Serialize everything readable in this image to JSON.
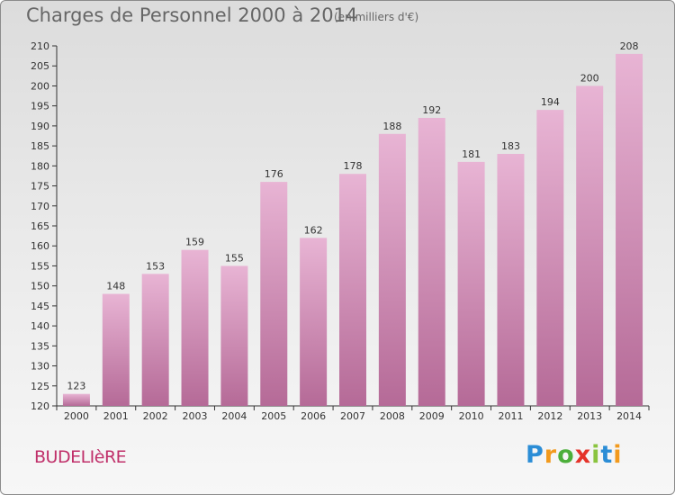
{
  "title": "Charges de Personnel 2000 à 2014",
  "subtitle": "(en milliers d'€)",
  "commune": "BUDELIèRE",
  "logo": {
    "letters": [
      "P",
      "r",
      "o",
      "x",
      "i",
      "t",
      "i"
    ],
    "colors": [
      "#2b8dd6",
      "#f29a1d",
      "#4caf3a",
      "#e5332a",
      "#8ac43f",
      "#2b8dd6",
      "#f29a1d"
    ]
  },
  "colors": {
    "bar_light": "#e8b4d4",
    "bar_dark": "#b56a97",
    "axis": "#333333"
  },
  "chart_data": {
    "type": "bar",
    "categories": [
      "2000",
      "2001",
      "2002",
      "2003",
      "2004",
      "2005",
      "2006",
      "2007",
      "2008",
      "2009",
      "2010",
      "2011",
      "2012",
      "2013",
      "2014"
    ],
    "values": [
      123,
      148,
      153,
      159,
      155,
      176,
      162,
      178,
      188,
      192,
      181,
      183,
      194,
      200,
      208
    ],
    "ylim": [
      120,
      210
    ],
    "yticks": [
      120,
      125,
      130,
      135,
      140,
      145,
      150,
      155,
      160,
      165,
      170,
      175,
      180,
      185,
      190,
      195,
      200,
      205,
      210
    ],
    "grid": false,
    "legend": "none"
  }
}
